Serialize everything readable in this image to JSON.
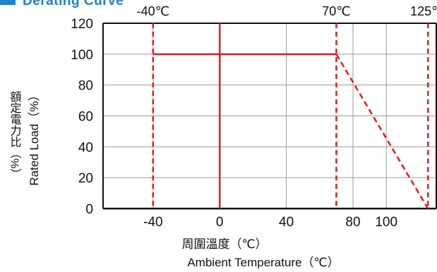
{
  "title_cropped": "Derating Curve",
  "chart_data": {
    "type": "line",
    "xlabel": "周圍溫度（℃）",
    "xlabel_en": "Ambient Temperature（℃）",
    "ylabel": "額定電力比（%）",
    "ylabel_en": "Rated Load（%）",
    "xlim": [
      -70,
      130
    ],
    "ylim": [
      0,
      120
    ],
    "x_ticks": [
      -40,
      0,
      40,
      80,
      100
    ],
    "y_ticks": [
      0,
      20,
      40,
      60,
      80,
      100,
      120
    ],
    "x_tick_labels": [
      "-40",
      "0",
      "40",
      "80",
      "100"
    ],
    "y_tick_labels": [
      "0",
      "20",
      "40",
      "60",
      "80",
      "100",
      "120"
    ],
    "grid": true,
    "series": [
      {
        "name": "",
        "style": "solid",
        "color": "#e21b23",
        "points": [
          [
            -40,
            100
          ],
          [
            70,
            100
          ]
        ]
      },
      {
        "name": "",
        "style": "dashed",
        "color": "#e21b23",
        "points": [
          [
            70,
            100
          ],
          [
            125,
            0
          ]
        ]
      }
    ],
    "vertical_markers": [
      {
        "x": -40,
        "label": "-40℃",
        "style": "dashed",
        "color": "#e21b23"
      },
      {
        "x": 0,
        "label": "",
        "style": "solid",
        "color": "#e21b23"
      },
      {
        "x": 70,
        "label": "70℃",
        "style": "dashed",
        "color": "#e21b23"
      },
      {
        "x": 125,
        "label": "125℃",
        "style": "dashed",
        "color": "#e21b23"
      }
    ]
  }
}
